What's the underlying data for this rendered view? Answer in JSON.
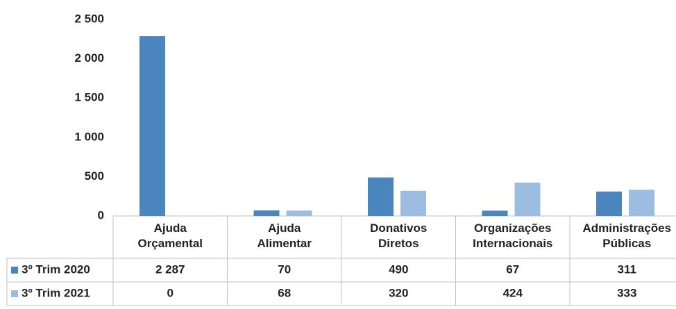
{
  "chart_data": {
    "type": "bar",
    "categories": [
      "Ajuda Orçamental",
      "Ajuda Alimentar",
      "Donativos Diretos",
      "Organizações Internacionais",
      "Administrações Públicas"
    ],
    "series": [
      {
        "name": "3º Trim 2020",
        "color": "#4a86bd",
        "values": [
          2287,
          70,
          490,
          67,
          311
        ],
        "value_labels": [
          "2 287",
          "70",
          "490",
          "67",
          "311"
        ]
      },
      {
        "name": "3º Trim 2021",
        "color": "#9dbde0",
        "values": [
          0,
          68,
          320,
          424,
          333
        ],
        "value_labels": [
          "0",
          "68",
          "320",
          "424",
          "333"
        ]
      }
    ],
    "ylim": [
      0,
      2500
    ],
    "yticks": [
      0,
      500,
      {
        "value": 1000,
        "label": "1 000"
      },
      {
        "value": 1500,
        "label": "1 500"
      },
      {
        "value": 2000,
        "label": "2 000"
      },
      {
        "value": 2500,
        "label": "2 500"
      }
    ],
    "grid": false
  }
}
